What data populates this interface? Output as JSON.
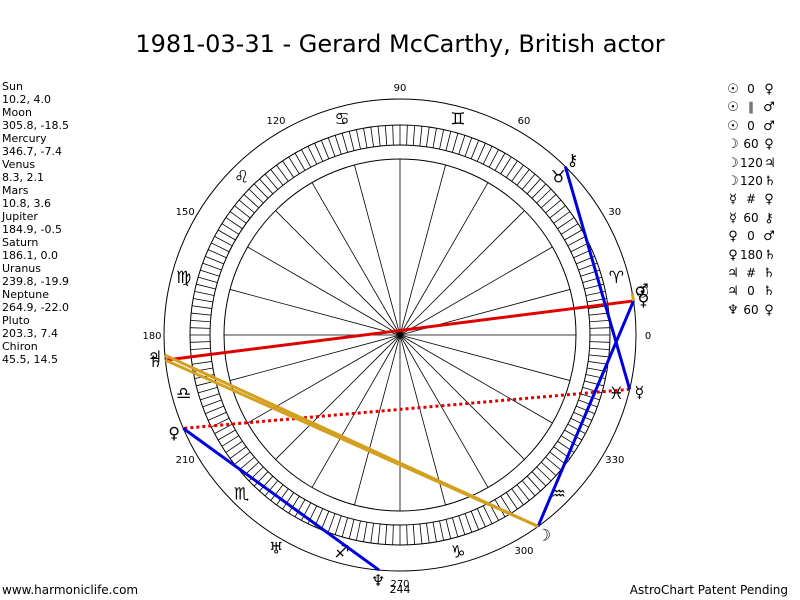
{
  "title": "1981-03-31 - Gerard McCarthy, British actor",
  "positions": [
    {
      "name": "Sun",
      "coords": "10.2, 4.0"
    },
    {
      "name": "Moon",
      "coords": "305.8, -18.5"
    },
    {
      "name": "Mercury",
      "coords": "346.7, -7.4"
    },
    {
      "name": "Venus",
      "coords": "8.3, 2.1"
    },
    {
      "name": "Mars",
      "coords": "10.8, 3.6"
    },
    {
      "name": "Jupiter",
      "coords": "184.9, -0.5"
    },
    {
      "name": "Saturn",
      "coords": "186.1, 0.0"
    },
    {
      "name": "Uranus",
      "coords": "239.8, -19.9"
    },
    {
      "name": "Neptune",
      "coords": "264.9, -22.0"
    },
    {
      "name": "Pluto",
      "coords": "203.3, 7.4"
    },
    {
      "name": "Chiron",
      "coords": "45.5, 14.5"
    }
  ],
  "aspects": [
    {
      "p1": "☉",
      "aspect": "0",
      "p2": "♀"
    },
    {
      "p1": "☉",
      "aspect": "∥",
      "p2": "♂"
    },
    {
      "p1": "☉",
      "aspect": "0",
      "p2": "♂"
    },
    {
      "p1": "☽",
      "aspect": "60",
      "p2": "♀"
    },
    {
      "p1": "☽",
      "aspect": "120",
      "p2": "♃"
    },
    {
      "p1": "☽",
      "aspect": "120",
      "p2": "♄"
    },
    {
      "p1": "☿",
      "aspect": "#",
      "p2": "♀"
    },
    {
      "p1": "☿",
      "aspect": "60",
      "p2": "⚷"
    },
    {
      "p1": "♀",
      "aspect": "0",
      "p2": "♂"
    },
    {
      "p1": "♀",
      "aspect": "180",
      "p2": "♄"
    },
    {
      "p1": "♃",
      "aspect": "#",
      "p2": "♄"
    },
    {
      "p1": "♃",
      "aspect": "0",
      "p2": "♄"
    },
    {
      "p1": "♆",
      "aspect": "60",
      "p2": "♀"
    }
  ],
  "footer": {
    "left": "www.harmoniclife.com",
    "right": "AstroChart Patent Pending"
  },
  "chart_data": {
    "type": "astrological-wheel",
    "title": "1981-03-31 - Gerard McCarthy, British actor",
    "degree_labels": [
      {
        "deg": 0,
        "text": "0"
      },
      {
        "deg": 30,
        "text": "30"
      },
      {
        "deg": 60,
        "text": "60"
      },
      {
        "deg": 90,
        "text": "90"
      },
      {
        "deg": 120,
        "text": "120"
      },
      {
        "deg": 150,
        "text": "150"
      },
      {
        "deg": 180,
        "text": "180"
      },
      {
        "deg": 210,
        "text": "210"
      },
      {
        "deg": 270,
        "text": "270"
      },
      {
        "deg": 300,
        "text": "300"
      },
      {
        "deg": 330,
        "text": "330"
      }
    ],
    "extra_label": {
      "deg": 244,
      "text": "244"
    },
    "signs": [
      {
        "deg": 15,
        "glyph": "♈"
      },
      {
        "deg": 45,
        "glyph": "♉"
      },
      {
        "deg": 75,
        "glyph": "♊"
      },
      {
        "deg": 105,
        "glyph": "♋"
      },
      {
        "deg": 135,
        "glyph": "♌"
      },
      {
        "deg": 165,
        "glyph": "♍"
      },
      {
        "deg": 195,
        "glyph": "♎"
      },
      {
        "deg": 225,
        "glyph": "♏"
      },
      {
        "deg": 255,
        "glyph": "♐"
      },
      {
        "deg": 285,
        "glyph": "♑"
      },
      {
        "deg": 315,
        "glyph": "♒"
      },
      {
        "deg": 345,
        "glyph": "♓"
      }
    ],
    "planets": [
      {
        "name": "Sun",
        "glyph": "☉",
        "lon": 10.2
      },
      {
        "name": "Moon",
        "glyph": "☽",
        "lon": 305.8
      },
      {
        "name": "Mercury",
        "glyph": "☿",
        "lon": 346.7
      },
      {
        "name": "Venus",
        "glyph": "♀",
        "lon": 8.3
      },
      {
        "name": "Mars",
        "glyph": "♂",
        "lon": 10.8
      },
      {
        "name": "Jupiter",
        "glyph": "♃",
        "lon": 184.9
      },
      {
        "name": "Saturn",
        "glyph": "♄",
        "lon": 186.1
      },
      {
        "name": "Uranus",
        "glyph": "♅",
        "lon": 239.8
      },
      {
        "name": "Neptune",
        "glyph": "♆",
        "lon": 264.9
      },
      {
        "name": "Pluto",
        "glyph": "♀",
        "lon": 203.3
      },
      {
        "name": "Chiron",
        "glyph": "⚷",
        "lon": 45.5
      }
    ],
    "aspect_lines": [
      {
        "from": "Venus",
        "to": "Saturn",
        "color": "#e00000",
        "style": "solid"
      },
      {
        "from": "Mercury",
        "to": "Pluto",
        "color": "#e00000",
        "style": "dotted"
      },
      {
        "from": "Moon",
        "to": "Venus",
        "color": "#0000dd",
        "style": "solid"
      },
      {
        "from": "Mercury",
        "to": "Chiron",
        "color": "#0000dd",
        "style": "solid"
      },
      {
        "from": "Neptune",
        "to": "Pluto",
        "color": "#0000dd",
        "style": "solid"
      },
      {
        "from": "Moon",
        "to": "Jupiter",
        "color": "#d4a020",
        "style": "solid"
      },
      {
        "from": "Moon",
        "to": "Saturn",
        "color": "#d4a020",
        "style": "solid"
      },
      {
        "from": "Sun",
        "to": "Venus",
        "color": "#d4a020",
        "style": "solid"
      }
    ]
  }
}
